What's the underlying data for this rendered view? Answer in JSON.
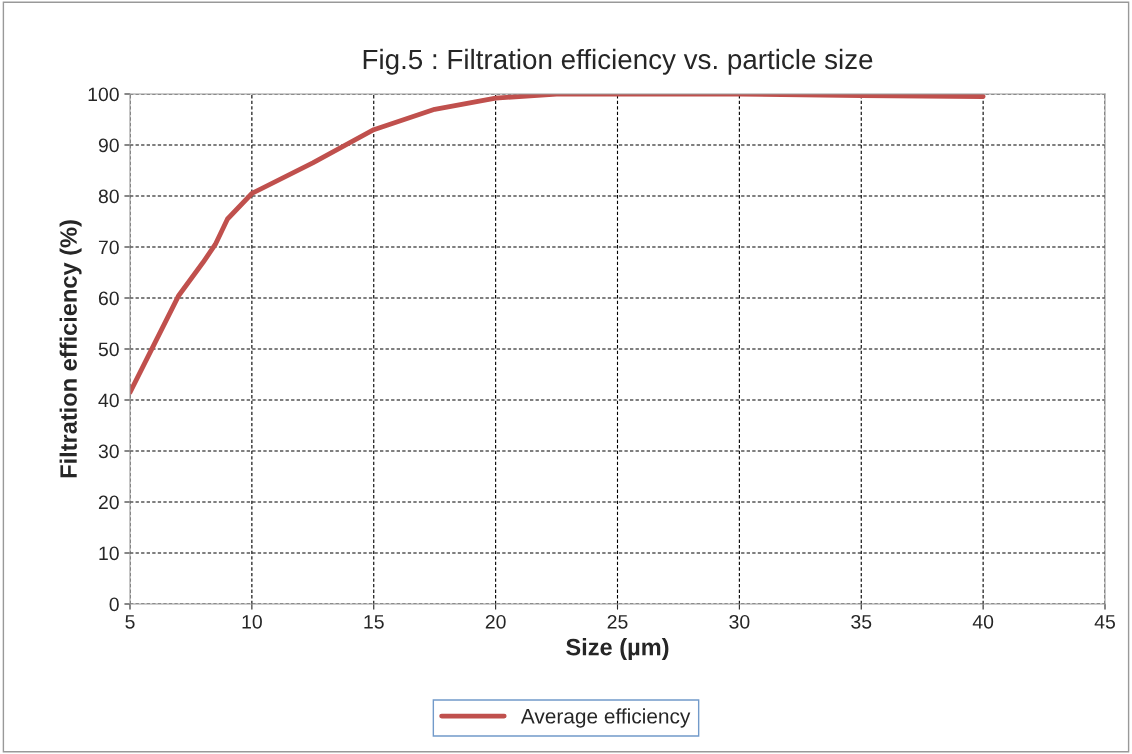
{
  "chart_data": {
    "type": "line",
    "title": "Fig.5 : Filtration efficiency vs. particle size",
    "xlabel": "Size (µm)",
    "ylabel": "Filtration efficiency (%)",
    "x": [
      5,
      6,
      7,
      8,
      8.5,
      9,
      10,
      12.5,
      15,
      17.5,
      20,
      22.5,
      25,
      30,
      35,
      40
    ],
    "series": [
      {
        "name": "Average efficiency",
        "color": "#c0504d",
        "values": [
          41.5,
          51,
          60.5,
          67,
          70.5,
          75.5,
          80.5,
          86.5,
          93,
          97,
          99.2,
          100,
          100,
          100,
          99.7,
          99.5
        ]
      }
    ],
    "xlim": [
      5,
      45
    ],
    "xticks": [
      5,
      10,
      15,
      20,
      25,
      30,
      35,
      40,
      45
    ],
    "ylim": [
      0,
      100
    ],
    "yticks": [
      0,
      10,
      20,
      30,
      40,
      50,
      60,
      70,
      80,
      90,
      100
    ],
    "grid": true,
    "legend": "bottom",
    "marker": "none",
    "line_style": "solid"
  }
}
